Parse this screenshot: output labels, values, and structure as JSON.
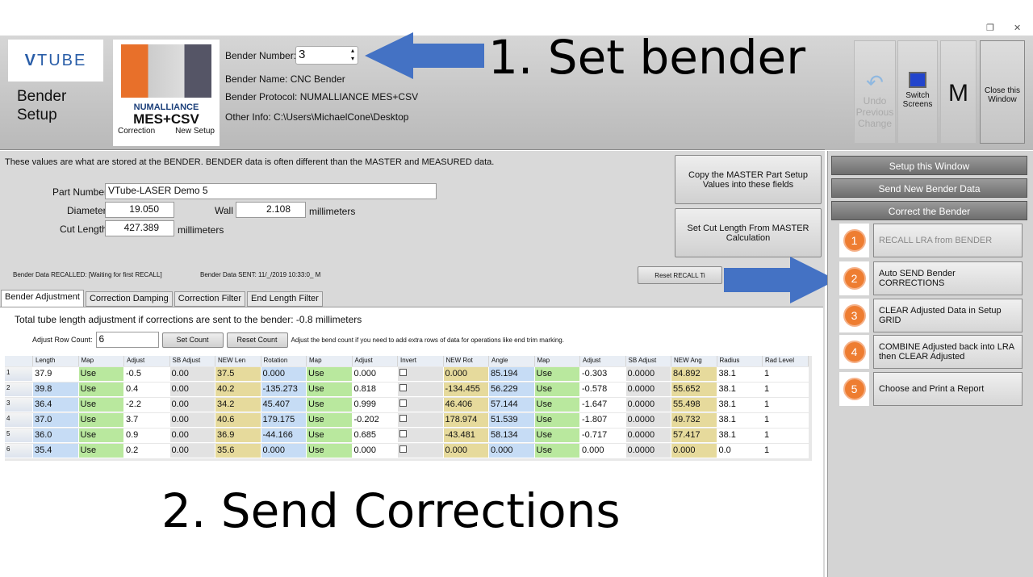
{
  "window": {
    "restore_icon": "restore-icon",
    "close_icon": "close-icon",
    "minimize": "–",
    "restore": "❐",
    "close": "✕"
  },
  "header": {
    "logo": "VTUBE",
    "title": "Bender Setup",
    "nlogo_brand": "NUMALLIANCE",
    "nlogo_product": "MES+CSV",
    "nlogo_left": "Correction",
    "nlogo_right": "New Setup",
    "bender_number_label": "Bender Number:",
    "bender_number": "3",
    "bender_name": "Bender Name: CNC Bender",
    "bender_protocol": "Bender Protocol: NUMALLIANCE MES+CSV",
    "other_info": "Other Info: C:\\Users\\MichaelCone\\Desktop"
  },
  "toolbar": {
    "undo": "Undo Previous Change",
    "switch": "Switch Screens",
    "m": "M",
    "close": "Close this Window"
  },
  "annotations": {
    "a1": "1. Set bender",
    "a2": "2. Send Corrections",
    "arrow_color": "#4472c4"
  },
  "main": {
    "notice": "These values are what are stored at the BENDER.  BENDER data is often different than the MASTER and MEASURED data.",
    "part_number_label": "Part Number",
    "part_number": "VTube-LASER Demo 5",
    "diameter_label": "Diameter",
    "diameter": "19.050",
    "wall_label": "Wall",
    "wall": "2.108",
    "mm1": "millimeters",
    "cut_length_label": "Cut Length",
    "cut_length": "427.389",
    "mm2": "millimeters",
    "copy_master": "Copy the MASTER Part Setup Values into these fields",
    "set_cut": "Set Cut Length From MASTER Calculation",
    "recalled": "Bender Data RECALLED:  [Waiting for first RECALL]",
    "sent": "Bender Data SENT:  11/_/2019 10:33:0_ M",
    "reset_recall": "Reset RECALL Ti"
  },
  "tabs": [
    "Bender Adjustment",
    "Correction Damping",
    "Correction Filter",
    "End Length Filter"
  ],
  "adjust": {
    "total_label": "Total tube length adjustment if corrections are sent to the bender:",
    "total_value": "-0.8",
    "total_unit": "millimeters",
    "row_count_label": "Adjust Row Count:",
    "row_count": "6",
    "set_count": "Set Count",
    "reset_count": "Reset Count",
    "hint": "Adjust the bend count if you need to add extra rows of data for operations like end trim marking."
  },
  "grid": {
    "columns": [
      "Length",
      "Map",
      "Adjust",
      "SB Adjust",
      "NEW Len",
      "Rotation",
      "Map",
      "Adjust",
      "Invert",
      "NEW Rot",
      "Angle",
      "Map",
      "Adjust",
      "SB Adjust",
      "NEW Ang",
      "Radius",
      "Rad Level"
    ],
    "rows": [
      [
        "37.9",
        "Use",
        "-0.5",
        "0.00",
        "37.5",
        "0.000",
        "Use",
        "0.000",
        "",
        "0.000",
        "85.194",
        "Use",
        "-0.303",
        "0.0000",
        "84.892",
        "38.1",
        "1"
      ],
      [
        "39.8",
        "Use",
        "0.4",
        "0.00",
        "40.2",
        "-135.273",
        "Use",
        "0.818",
        "",
        "-134.455",
        "56.229",
        "Use",
        "-0.578",
        "0.0000",
        "55.652",
        "38.1",
        "1"
      ],
      [
        "36.4",
        "Use",
        "-2.2",
        "0.00",
        "34.2",
        "45.407",
        "Use",
        "0.999",
        "",
        "46.406",
        "57.144",
        "Use",
        "-1.647",
        "0.0000",
        "55.498",
        "38.1",
        "1"
      ],
      [
        "37.0",
        "Use",
        "3.7",
        "0.00",
        "40.6",
        "179.175",
        "Use",
        "-0.202",
        "",
        "178.974",
        "51.539",
        "Use",
        "-1.807",
        "0.0000",
        "49.732",
        "38.1",
        "1"
      ],
      [
        "36.0",
        "Use",
        "0.9",
        "0.00",
        "36.9",
        "-44.166",
        "Use",
        "0.685",
        "",
        "-43.481",
        "58.134",
        "Use",
        "-0.717",
        "0.0000",
        "57.417",
        "38.1",
        "1"
      ],
      [
        "35.4",
        "Use",
        "0.2",
        "0.00",
        "35.6",
        "0.000",
        "Use",
        "0.000",
        "",
        "0.000",
        "0.000",
        "Use",
        "0.000",
        "0.0000",
        "0.000",
        "0.0",
        "1"
      ]
    ]
  },
  "side": {
    "setup": "Setup this Window",
    "send": "Send New Bender Data",
    "correct": "Correct the Bender",
    "steps": [
      {
        "n": "1",
        "label": "RECALL LRA from BENDER"
      },
      {
        "n": "2",
        "label": "Auto SEND Bender CORRECTIONS"
      },
      {
        "n": "3",
        "label": "CLEAR Adjusted Data in Setup GRID"
      },
      {
        "n": "4",
        "label": "COMBINE Adjusted back into LRA then CLEAR Adjusted"
      },
      {
        "n": "5",
        "label": "Choose and Print a Report"
      }
    ]
  },
  "colors": {
    "blue": "#c6dcf5",
    "green": "#b9e89e",
    "tan": "#e6da9c",
    "gray": "#e2e2e2",
    "accent": "#ee7d31"
  }
}
